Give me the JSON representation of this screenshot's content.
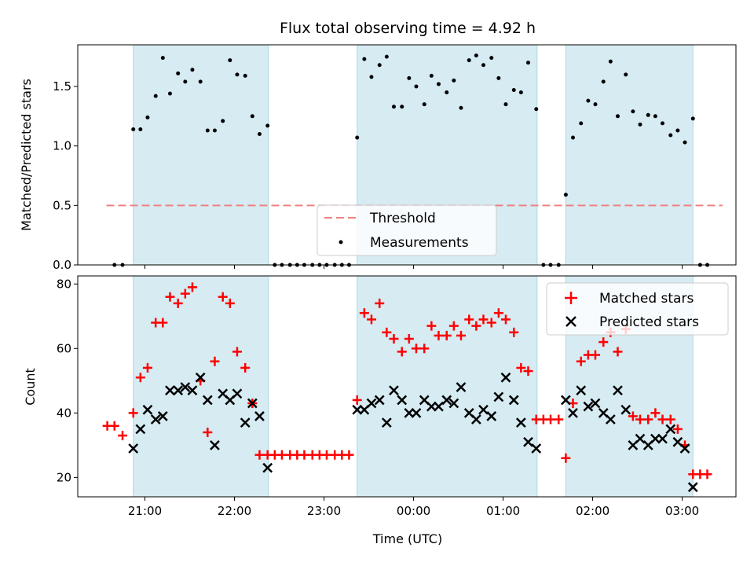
{
  "chart_data": [
    {
      "type": "scatter",
      "panel": "top",
      "title": "Flux total observing time = 4.92 h",
      "ylabel": "Matched/Predicted stars",
      "ylim": [
        0,
        1.85
      ],
      "yticks": [
        "0.0",
        "0.5",
        "1.0",
        "1.5"
      ],
      "ytick_values": [
        0,
        0.5,
        1.0,
        1.5
      ],
      "xlim_hours": [
        20.25,
        27.6
      ],
      "shaded_intervals_hours": [
        [
          20.87,
          22.38
        ],
        [
          23.37,
          25.38
        ],
        [
          25.7,
          27.12
        ]
      ],
      "threshold": {
        "name": "Threshold",
        "value": 0.5,
        "x_range_hours": [
          20.57,
          27.45
        ],
        "color": "#f08080"
      },
      "legend": {
        "placement": "lower-center",
        "entries": [
          "Threshold",
          "Measurements"
        ]
      },
      "series": [
        {
          "name": "Measurements",
          "color": "#000000",
          "x_hours": [
            20.66,
            20.75,
            20.87,
            20.95,
            21.03,
            21.12,
            21.2,
            21.28,
            21.37,
            21.45,
            21.53,
            21.62,
            21.7,
            21.78,
            21.87,
            21.95,
            22.03,
            22.12,
            22.2,
            22.28,
            22.37,
            22.45,
            22.53,
            22.62,
            22.7,
            22.78,
            22.87,
            22.95,
            23.03,
            23.12,
            23.2,
            23.28,
            23.37,
            23.45,
            23.53,
            23.62,
            23.7,
            23.78,
            23.87,
            23.95,
            24.03,
            24.12,
            24.2,
            24.28,
            24.37,
            24.45,
            24.53,
            24.62,
            24.7,
            24.78,
            24.87,
            24.95,
            25.03,
            25.12,
            25.2,
            25.28,
            25.37,
            25.45,
            25.53,
            25.62,
            25.7,
            25.78,
            25.87,
            25.95,
            26.03,
            26.12,
            26.2,
            26.28,
            26.37,
            26.45,
            26.53,
            26.62,
            26.7,
            26.78,
            26.87,
            26.95,
            27.03,
            27.12,
            27.2,
            27.28
          ],
          "y": [
            0,
            0,
            1.14,
            1.14,
            1.24,
            1.42,
            1.74,
            1.44,
            1.61,
            1.54,
            1.64,
            1.54,
            1.13,
            1.13,
            1.21,
            1.72,
            1.6,
            1.59,
            1.25,
            1.1,
            1.17,
            0,
            0,
            0,
            0,
            0,
            0,
            0,
            0,
            0,
            0,
            0,
            1.07,
            1.73,
            1.58,
            1.68,
            1.75,
            1.33,
            1.33,
            1.57,
            1.5,
            1.35,
            1.59,
            1.52,
            1.45,
            1.55,
            1.32,
            1.72,
            1.76,
            1.68,
            1.74,
            1.57,
            1.35,
            1.47,
            1.45,
            1.7,
            1.31,
            0,
            0,
            0,
            0.59,
            1.07,
            1.19,
            1.38,
            1.35,
            1.54,
            1.71,
            1.25,
            1.6,
            1.29,
            1.18,
            1.26,
            1.25,
            1.19,
            1.09,
            1.13,
            1.03,
            1.23,
            0,
            0
          ]
        }
      ]
    },
    {
      "type": "scatter",
      "panel": "bottom",
      "ylabel": "Count",
      "xlabel": "Time (UTC)",
      "ylim": [
        14,
        82.5
      ],
      "yticks": [
        "20",
        "40",
        "60",
        "80"
      ],
      "ytick_values": [
        20,
        40,
        60,
        80
      ],
      "xlim_hours": [
        20.25,
        27.6
      ],
      "xticks": [
        "21:00",
        "22:00",
        "23:00",
        "00:00",
        "01:00",
        "02:00",
        "03:00"
      ],
      "xtick_hours": [
        21,
        22,
        23,
        24,
        25,
        26,
        27
      ],
      "shaded_intervals_hours": [
        [
          20.87,
          22.38
        ],
        [
          23.37,
          25.38
        ],
        [
          25.7,
          27.12
        ]
      ],
      "legend": {
        "placement": "upper-right",
        "entries": [
          "Matched stars",
          "Predicted stars"
        ]
      },
      "series": [
        {
          "name": "Matched stars",
          "marker": "+",
          "color": "#ff0000",
          "x_hours": [
            20.58,
            20.66,
            20.75,
            20.87,
            20.95,
            21.03,
            21.12,
            21.2,
            21.28,
            21.37,
            21.45,
            21.53,
            21.62,
            21.7,
            21.78,
            21.87,
            21.95,
            22.03,
            22.12,
            22.2,
            22.28,
            22.37,
            22.45,
            22.53,
            22.62,
            22.7,
            22.78,
            22.87,
            22.95,
            23.03,
            23.12,
            23.2,
            23.28,
            23.37,
            23.45,
            23.53,
            23.62,
            23.7,
            23.78,
            23.87,
            23.95,
            24.03,
            24.12,
            24.2,
            24.28,
            24.37,
            24.45,
            24.53,
            24.62,
            24.7,
            24.78,
            24.87,
            24.95,
            25.03,
            25.12,
            25.2,
            25.28,
            25.37,
            25.45,
            25.53,
            25.62,
            25.7,
            25.78,
            25.87,
            25.95,
            26.03,
            26.12,
            26.2,
            26.28,
            26.37,
            26.45,
            26.53,
            26.62,
            26.7,
            26.78,
            26.87,
            26.95,
            27.03,
            27.12,
            27.2,
            27.28
          ],
          "y": [
            36,
            36,
            33,
            40,
            51,
            54,
            68,
            68,
            76,
            74,
            77,
            79,
            50,
            34,
            56,
            76,
            74,
            59,
            54,
            43,
            27,
            27,
            27,
            27,
            27,
            27,
            27,
            27,
            27,
            27,
            27,
            27,
            27,
            44,
            71,
            69,
            74,
            65,
            63,
            59,
            63,
            60,
            60,
            67,
            64,
            64,
            67,
            64,
            69,
            67,
            69,
            68,
            71,
            69,
            65,
            54,
            53,
            38,
            38,
            38,
            38,
            26,
            43,
            56,
            58,
            58,
            62,
            65,
            59,
            66,
            39,
            38,
            38,
            40,
            38,
            38,
            35,
            30,
            21,
            21,
            21
          ]
        },
        {
          "name": "Predicted stars",
          "marker": "x",
          "color": "#000000",
          "x_hours": [
            20.87,
            20.95,
            21.03,
            21.12,
            21.2,
            21.28,
            21.37,
            21.45,
            21.53,
            21.62,
            21.7,
            21.78,
            21.87,
            21.95,
            22.03,
            22.12,
            22.2,
            22.28,
            22.37,
            23.37,
            23.45,
            23.53,
            23.62,
            23.7,
            23.78,
            23.87,
            23.95,
            24.03,
            24.12,
            24.2,
            24.28,
            24.37,
            24.45,
            24.53,
            24.62,
            24.7,
            24.78,
            24.87,
            24.95,
            25.03,
            25.12,
            25.2,
            25.28,
            25.37,
            25.7,
            25.78,
            25.87,
            25.95,
            26.03,
            26.12,
            26.2,
            26.28,
            26.37,
            26.45,
            26.53,
            26.62,
            26.7,
            26.78,
            26.87,
            26.95,
            27.03,
            27.12
          ],
          "y": [
            29,
            35,
            41,
            38,
            39,
            47,
            47,
            48,
            47,
            51,
            44,
            30,
            46,
            44,
            46,
            37,
            43,
            39,
            23,
            41,
            41,
            43,
            44,
            37,
            47,
            44,
            40,
            40,
            44,
            42,
            42,
            44,
            43,
            48,
            40,
            38,
            41,
            39,
            45,
            51,
            44,
            37,
            31,
            29,
            44,
            40,
            47,
            42,
            43,
            40,
            38,
            47,
            41,
            30,
            32,
            30,
            32,
            32,
            35,
            31,
            29,
            17
          ]
        }
      ]
    }
  ],
  "colors": {
    "shade": "#add8e6",
    "shade_alpha": 0.5,
    "threshold": "#f08080",
    "matched": "#ff0000",
    "predicted": "#000000"
  }
}
